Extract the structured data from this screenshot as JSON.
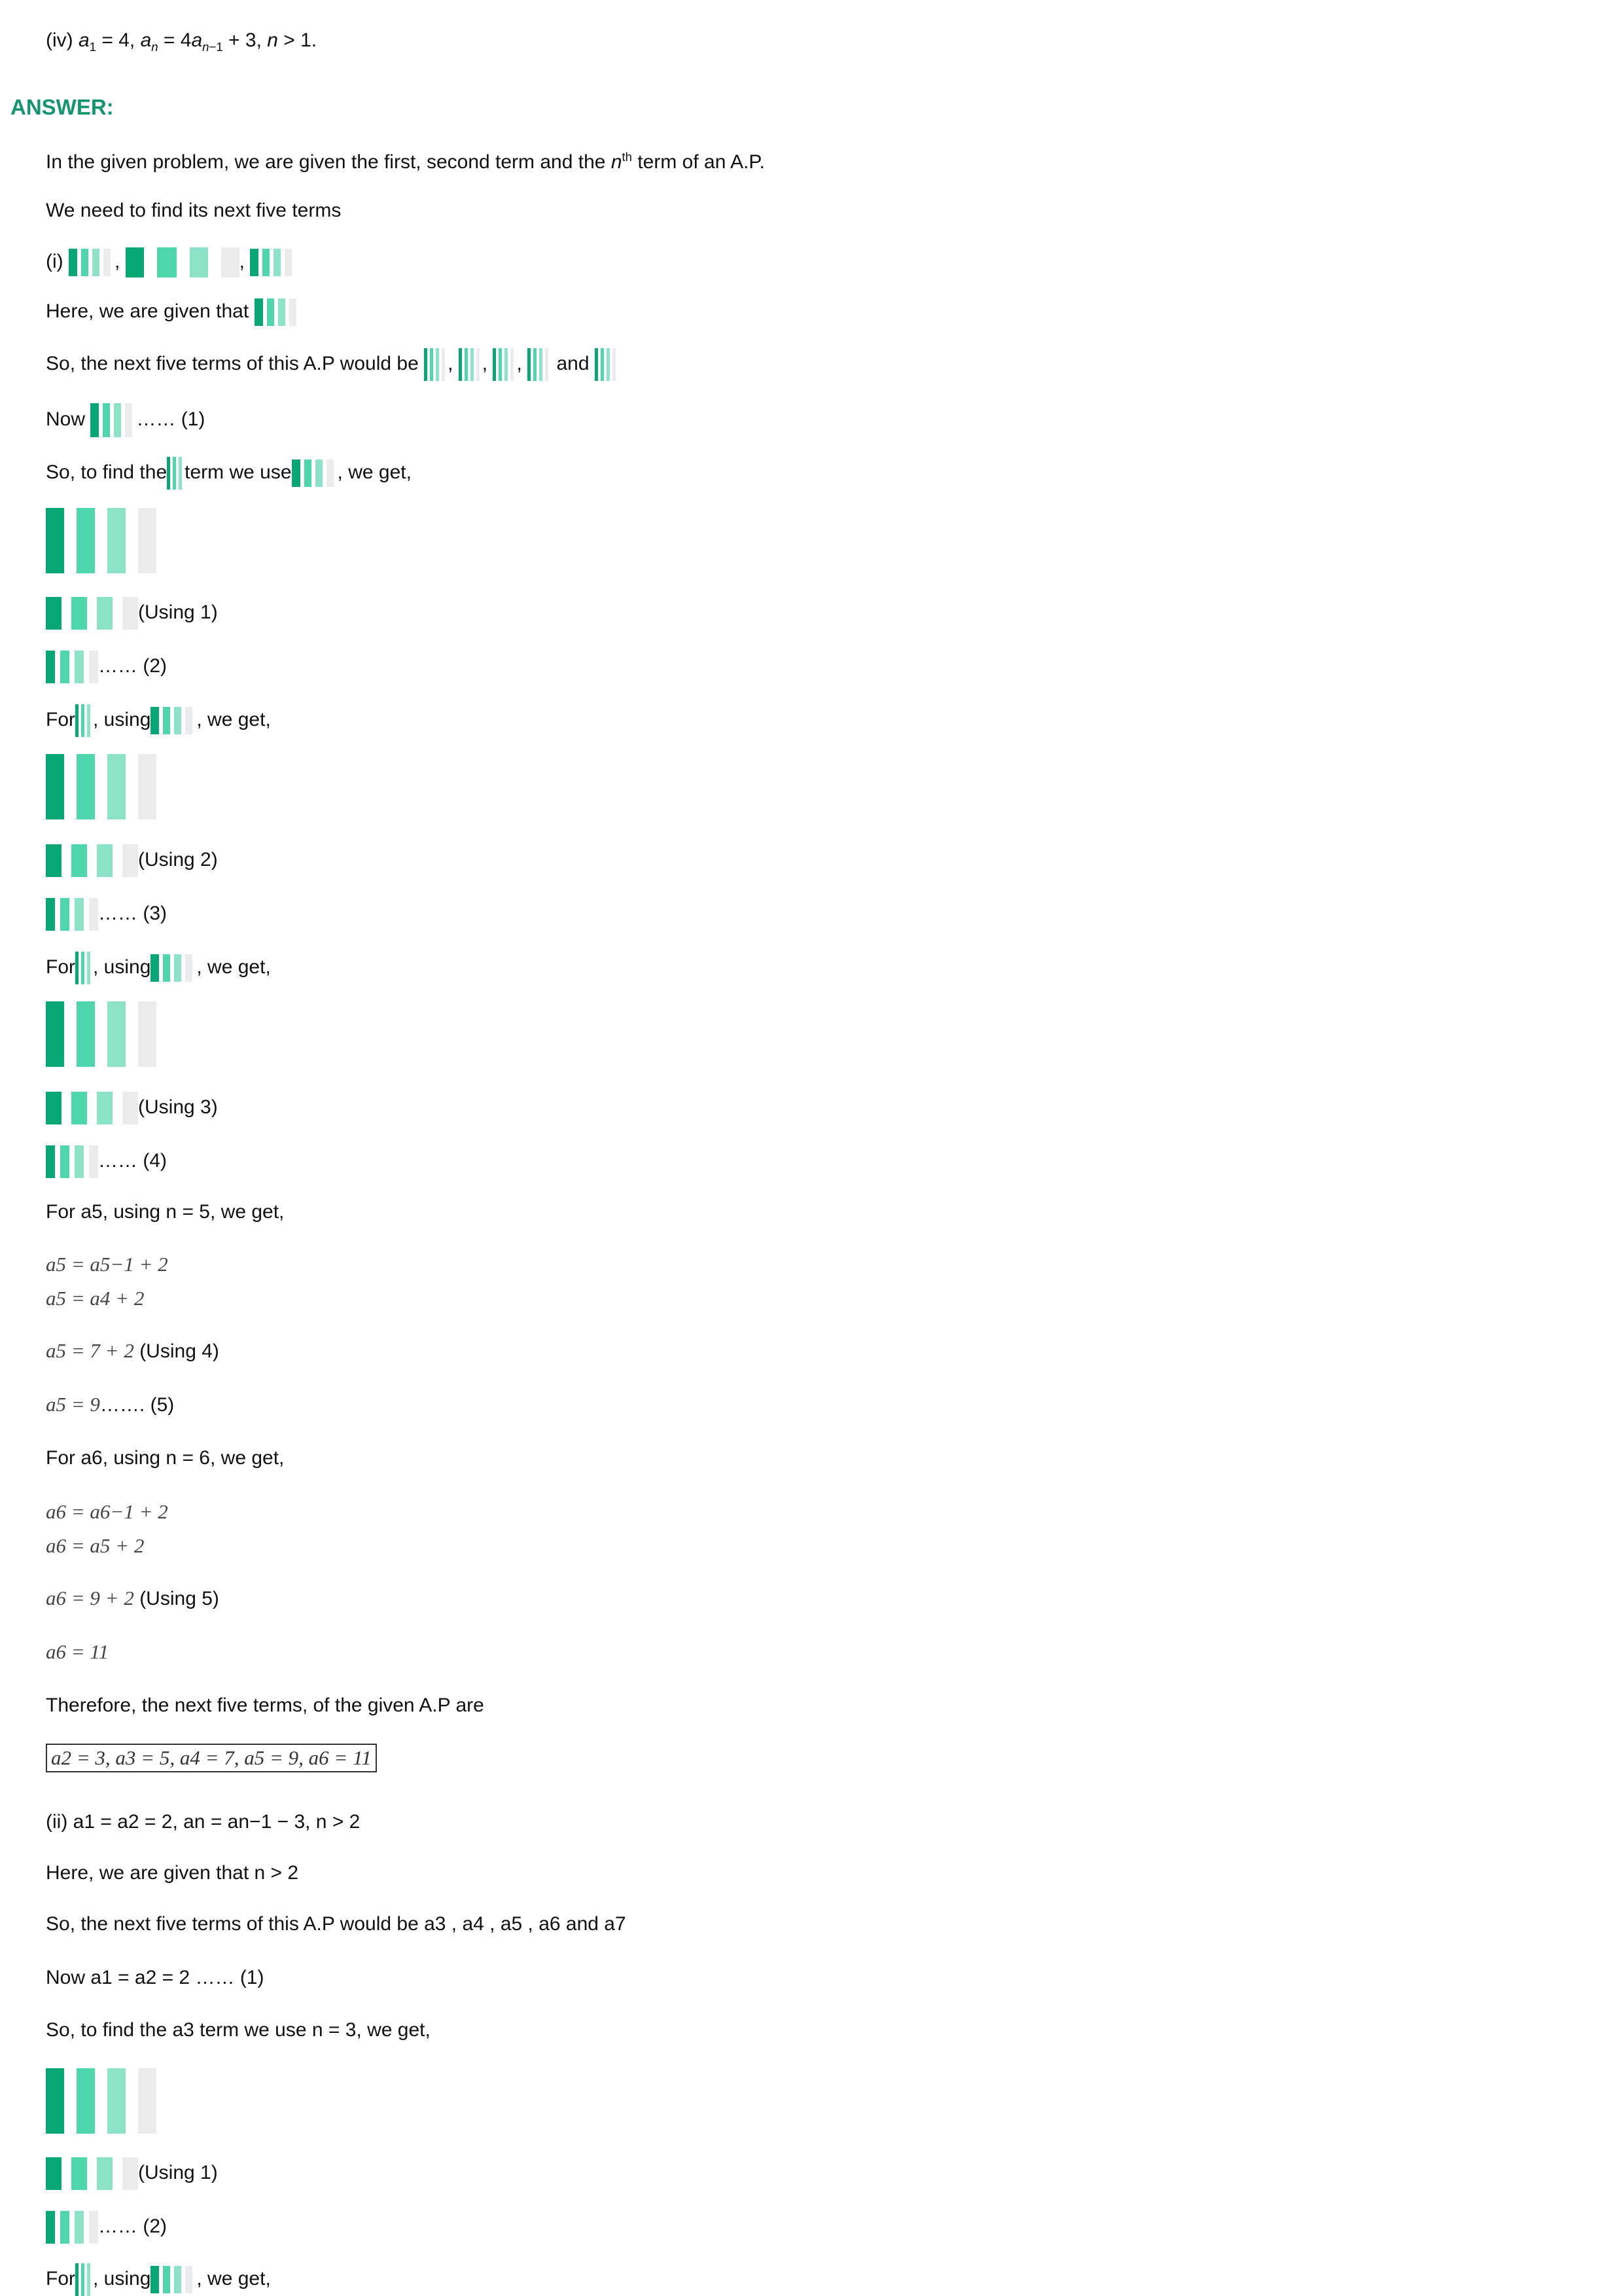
{
  "top_line": "(iv) a1 = 4, an = 4an−1 + 3, n > 1.",
  "answer_label": "ANSWER:",
  "intro_1": "In the given problem, we are given the first, second term and the nth term of an A.P.",
  "intro_2": "We need to find its next five terms",
  "part_i_label": "(i)",
  "given_that": "Here, we are given that",
  "next_five_prefix": "So, the next five terms of this A.P would be",
  "and_word": "and",
  "now_label": "Now",
  "eq1_tag": "…… (1)",
  "to_find_prefix": "So, to find the",
  "to_find_mid": "term we use",
  "we_get": ", we get,",
  "using_1": "(Using 1)",
  "eq2_tag": "…… (2)",
  "for_word": "For",
  "using_word": ", using",
  "using_2": "(Using 2)",
  "eq3_tag": "…… (3)",
  "using_3": "(Using 3)",
  "eq4_tag": "…… (4)",
  "a5_for": "For a5, using n = 5, we get,",
  "a5_eq1": "a5 = a5−1 + 2",
  "a5_eq2": "a5 = a4 + 2",
  "a5_eq3": "a5 = 7 + 2",
  "using_4": "(Using 4)",
  "a5_eq4": "a5 = 9",
  "eq5_tag": "……. (5)",
  "a6_for": "For a6, using n = 6, we get,",
  "a6_eq1": "a6 = a6−1 + 2",
  "a6_eq2": "a6 = a5 + 2",
  "a6_eq3": "a6 = 9 + 2",
  "using_5": "(Using 5)",
  "a6_eq4": "a6 = 11",
  "therefore": "Therefore, the next five terms, of the given A.P are",
  "boxed_answer": "a2 = 3, a3 = 5, a4 = 7, a5 = 9, a6 = 11",
  "part_ii": "(ii) a1 = a2 = 2, an = an−1 − 3, n > 2",
  "ii_given": "Here, we are given that n > 2",
  "ii_next_five": "So, the next five terms of this A.P would be a3 , a4 , a5 , a6 and a7",
  "ii_now": "Now a1 = a2 = 2 …… (1)",
  "ii_to_find": "So, to find the a3 term we use n = 3, we get,",
  "ii_using_1": "(Using 1)",
  "ii_eq2_tag": "…… (2)",
  "ii_for": "For",
  "ii_using": ", using",
  "ii_we_get": ", we get,"
}
